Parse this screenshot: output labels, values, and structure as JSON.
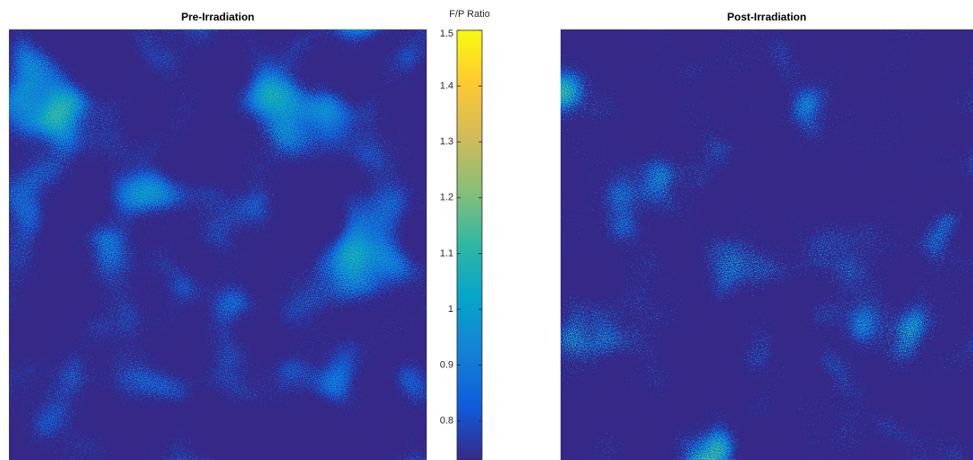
{
  "chart_data": {
    "type": "heatmap-pair",
    "panels": [
      {
        "title": "Pre-Irradiation"
      },
      {
        "title": "Post-Irradiation"
      }
    ],
    "colorbar": {
      "label": "F/P Ratio",
      "colormap": "parula",
      "ylim": [
        0.73,
        1.5
      ],
      "yticks": [
        0.8,
        0.9,
        1,
        1.1,
        1.2,
        1.3,
        1.4,
        1.5
      ]
    }
  }
}
